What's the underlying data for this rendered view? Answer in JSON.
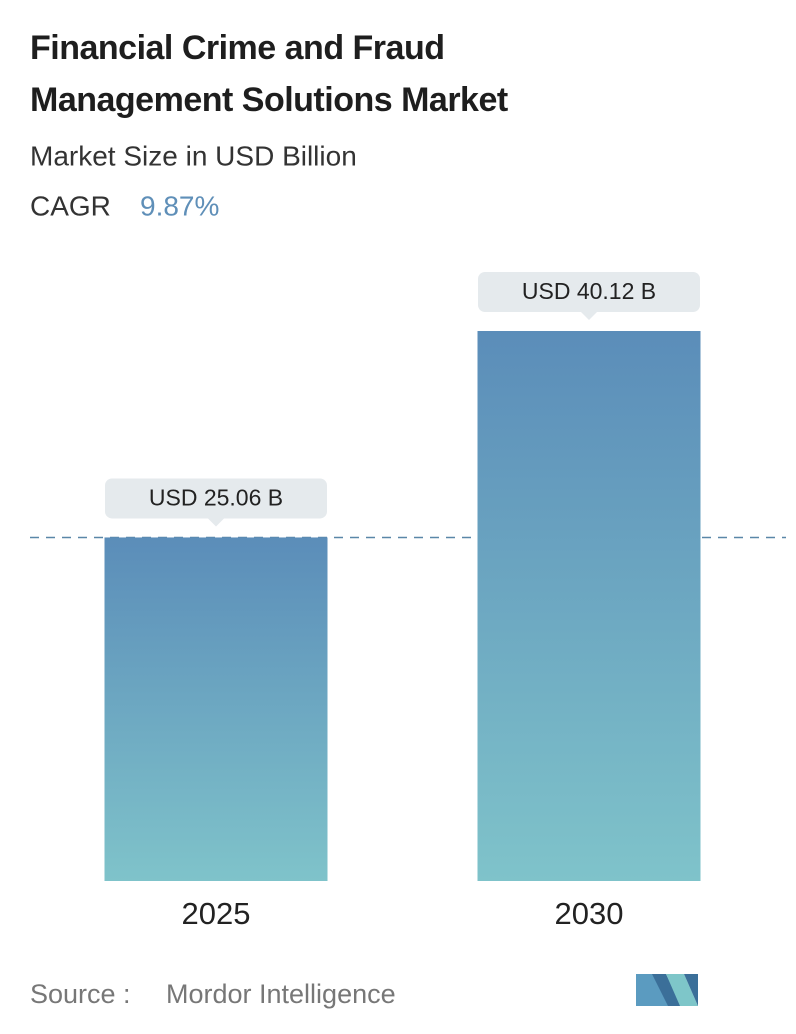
{
  "chart_data": {
    "type": "bar",
    "title": "Financial Crime and Fraud Management Solutions Market",
    "subtitle": "Market Size in USD Billion",
    "cagr_label": "CAGR",
    "cagr_value": "9.87%",
    "categories": [
      "2025",
      "2030"
    ],
    "values": [
      25.06,
      40.12
    ],
    "value_labels": [
      "USD 25.06 B",
      "USD 40.12 B"
    ],
    "color_top": "#5b8db9",
    "color_bottom": "#7fc3ca",
    "source_label": "Source :",
    "source": "Mordor Intelligence"
  }
}
